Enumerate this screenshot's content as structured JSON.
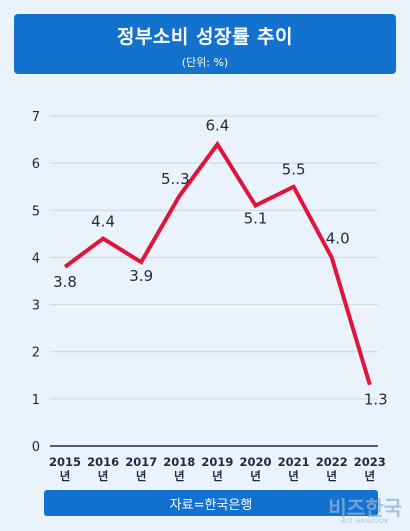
{
  "chart_data": {
    "type": "line",
    "title": "정부소비 성장률 추이",
    "subtitle": "(단위: %)",
    "categories": [
      "2015",
      "2016",
      "2017",
      "2018",
      "2019",
      "2020",
      "2021",
      "2022",
      "2023"
    ],
    "x_unit": "년",
    "values": [
      3.8,
      4.4,
      3.9,
      5.3,
      6.4,
      5.1,
      5.5,
      4.0,
      1.3
    ],
    "value_labels": [
      "3.8",
      "4.4",
      "3.9",
      "5..3",
      "6.4",
      "5.1",
      "5.5",
      "4.0",
      "1.3"
    ],
    "yticks": [
      "0",
      "1",
      "2",
      "3",
      "4",
      "5",
      "6",
      "7"
    ],
    "ylim": [
      0,
      7
    ],
    "grid": true,
    "line_color": "#e0143c",
    "source": "자료=한국은행"
  },
  "colors": {
    "accent": "#1472cf",
    "background": "#eaf3fb"
  },
  "watermark": {
    "main": "비즈한국",
    "sub": "BIZ.HANKOOK"
  }
}
